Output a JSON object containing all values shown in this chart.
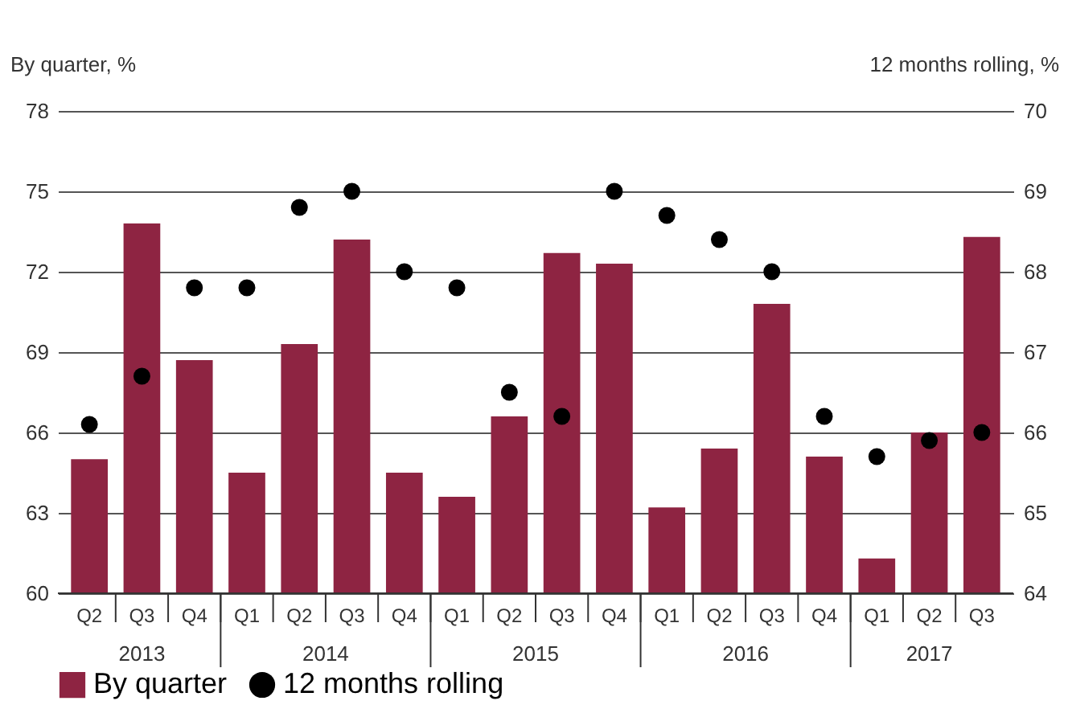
{
  "chart_data": {
    "type": "bar",
    "categories": [
      "Q2",
      "Q3",
      "Q4",
      "Q1",
      "Q2",
      "Q3",
      "Q4",
      "Q1",
      "Q2",
      "Q3",
      "Q4",
      "Q1",
      "Q2",
      "Q3",
      "Q4",
      "Q1",
      "Q2",
      "Q3"
    ],
    "series": [
      {
        "name": "By quarter",
        "color": "#8e2442",
        "values": [
          65.0,
          73.8,
          68.7,
          64.5,
          69.3,
          73.2,
          64.5,
          63.6,
          66.6,
          72.7,
          72.3,
          63.2,
          65.4,
          70.8,
          65.1,
          61.3,
          66.0,
          73.3
        ]
      },
      {
        "name": "12 months rolling",
        "type": "scatter",
        "axis": "y2",
        "color": "#000000",
        "values": [
          66.1,
          66.7,
          67.8,
          67.8,
          68.8,
          69.0,
          68.0,
          67.8,
          66.5,
          66.2,
          69.0,
          68.7,
          68.4,
          68.0,
          66.2,
          65.7,
          65.9,
          66.0
        ]
      }
    ],
    "ylabel": "By quarter, %",
    "y2label": "12 months rolling, %",
    "ylim": [
      60,
      78
    ],
    "yticks": [
      60,
      63,
      66,
      69,
      72,
      75,
      78
    ],
    "y2lim": [
      64,
      70
    ],
    "y2ticks": [
      64,
      65,
      66,
      67,
      68,
      69,
      70
    ],
    "annotations": [
      "2013",
      "2014",
      "2015",
      "2016",
      "2017"
    ],
    "grid": "y",
    "legend": "bottom",
    "marker": "circle"
  }
}
